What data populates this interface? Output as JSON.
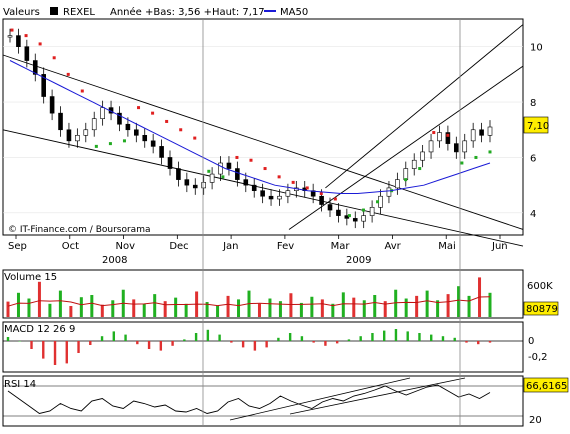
{
  "header": {
    "valeurs_label": "Valeurs",
    "symbol": "REXEL",
    "range_text": "Année +Bas: 3,56 +Haut: 7,17",
    "ma_label": "MA50"
  },
  "watermark": "© IT-Finance.com / Boursorama",
  "colors": {
    "price": "#000000",
    "ma50": "#1a1ad6",
    "sar_red": "#e02020",
    "sar_green": "#22aa22",
    "volume_up": "#20b020",
    "volume_down": "#e03030",
    "volume_avg": "#c01010",
    "macd_pos": "#20b020",
    "macd_neg": "#e03030",
    "badge_bg": "#ffee00",
    "trend": "#000000"
  },
  "chart_data": [
    {
      "type": "candlestick",
      "name": "price",
      "x_axis": {
        "months": [
          "Sep",
          "Oct",
          "Nov",
          "Dec",
          "Jan",
          "Fev",
          "Mar",
          "Avr",
          "Mai",
          "Jun"
        ],
        "years": [
          "2008",
          "2009"
        ]
      },
      "y_axis": {
        "ticks": [
          4,
          6,
          8,
          10
        ],
        "range": [
          3.2,
          11.0
        ]
      },
      "last_value_label": "7,10",
      "close_series": [
        10.4,
        10.0,
        9.5,
        9.0,
        8.2,
        7.6,
        7.0,
        6.6,
        6.8,
        7.0,
        7.4,
        7.8,
        7.6,
        7.2,
        7.0,
        6.8,
        6.6,
        6.4,
        6.0,
        5.6,
        5.2,
        5.0,
        4.9,
        5.1,
        5.4,
        5.8,
        5.6,
        5.2,
        5.0,
        4.8,
        4.6,
        4.5,
        4.6,
        4.8,
        4.9,
        4.8,
        4.6,
        4.3,
        4.1,
        3.9,
        3.8,
        3.7,
        3.9,
        4.2,
        4.6,
        4.9,
        5.2,
        5.6,
        5.9,
        6.2,
        6.6,
        6.9,
        6.5,
        6.2,
        6.6,
        7.0,
        6.8,
        7.1
      ],
      "ma50_series": [
        9.5,
        9.2,
        8.9,
        8.6,
        8.3,
        8.0,
        7.7,
        7.4,
        7.1,
        6.8,
        6.5,
        6.2,
        5.9,
        5.6,
        5.4,
        5.2,
        5.0,
        4.9,
        4.8,
        4.75,
        4.7,
        4.7,
        4.75,
        4.8,
        4.9,
        5.0,
        5.2,
        5.4,
        5.6,
        5.8
      ],
      "sar_series": [
        {
          "v": 10.6,
          "c": "red"
        },
        {
          "v": 10.4,
          "c": "red"
        },
        {
          "v": 10.1,
          "c": "red"
        },
        {
          "v": 9.6,
          "c": "red"
        },
        {
          "v": 9.0,
          "c": "red"
        },
        {
          "v": 8.4,
          "c": "red"
        },
        {
          "v": 6.4,
          "c": "green"
        },
        {
          "v": 6.5,
          "c": "green"
        },
        {
          "v": 6.6,
          "c": "green"
        },
        {
          "v": 7.8,
          "c": "red"
        },
        {
          "v": 7.6,
          "c": "red"
        },
        {
          "v": 7.3,
          "c": "red"
        },
        {
          "v": 7.0,
          "c": "red"
        },
        {
          "v": 6.7,
          "c": "red"
        },
        {
          "v": 5.5,
          "c": "green"
        },
        {
          "v": 5.3,
          "c": "green"
        },
        {
          "v": 6.0,
          "c": "red"
        },
        {
          "v": 5.9,
          "c": "red"
        },
        {
          "v": 5.6,
          "c": "red"
        },
        {
          "v": 5.3,
          "c": "red"
        },
        {
          "v": 5.1,
          "c": "red"
        },
        {
          "v": 4.9,
          "c": "red"
        },
        {
          "v": 4.7,
          "c": "red"
        },
        {
          "v": 4.5,
          "c": "red"
        },
        {
          "v": 3.9,
          "c": "green"
        },
        {
          "v": 4.1,
          "c": "green"
        },
        {
          "v": 4.4,
          "c": "green"
        },
        {
          "v": 4.8,
          "c": "green"
        },
        {
          "v": 5.2,
          "c": "green"
        },
        {
          "v": 5.6,
          "c": "green"
        },
        {
          "v": 6.9,
          "c": "red"
        },
        {
          "v": 6.8,
          "c": "red"
        },
        {
          "v": 5.8,
          "c": "green"
        },
        {
          "v": 6.0,
          "c": "green"
        },
        {
          "v": 6.2,
          "c": "green"
        }
      ],
      "trendlines": [
        {
          "from": [
            0,
            9.7
          ],
          "to": [
            1,
            3.4
          ],
          "note": "upper descending channel"
        },
        {
          "from": [
            0,
            7.0
          ],
          "to": [
            1,
            2.8
          ],
          "note": "lower descending channel"
        },
        {
          "from": [
            0.55,
            3.4
          ],
          "to": [
            1,
            9.3
          ],
          "note": "lower ascending channel"
        },
        {
          "from": [
            0.62,
            4.9
          ],
          "to": [
            1,
            10.8
          ],
          "note": "upper ascending channel"
        }
      ]
    },
    {
      "type": "bar",
      "name": "Volume 15",
      "title": "Volume 15",
      "ticks": [
        "600K"
      ],
      "last_value_label": "80879",
      "values": [
        0.35,
        0.55,
        0.42,
        0.8,
        0.3,
        0.6,
        0.25,
        0.45,
        0.5,
        0.28,
        0.38,
        0.62,
        0.4,
        0.3,
        0.52,
        0.36,
        0.44,
        0.3,
        0.58,
        0.34,
        0.26,
        0.48,
        0.4,
        0.6,
        0.3,
        0.42,
        0.36,
        0.54,
        0.32,
        0.46,
        0.4,
        0.3,
        0.56,
        0.44,
        0.38,
        0.5,
        0.36,
        0.62,
        0.42,
        0.48,
        0.6,
        0.38,
        0.52,
        0.7,
        0.48,
        0.9,
        0.55
      ]
    },
    {
      "type": "bar",
      "name": "MACD 12 26 9",
      "title": "MACD 12 26 9",
      "ticks": [
        "0",
        "-0,2"
      ],
      "values": [
        0.05,
        0.0,
        -0.1,
        -0.22,
        -0.3,
        -0.28,
        -0.15,
        -0.05,
        0.06,
        0.12,
        0.08,
        -0.04,
        -0.1,
        -0.12,
        -0.06,
        0.02,
        0.1,
        0.14,
        0.08,
        -0.02,
        -0.08,
        -0.12,
        -0.08,
        0.04,
        0.1,
        0.06,
        -0.02,
        -0.06,
        -0.03,
        0.02,
        0.06,
        0.1,
        0.13,
        0.15,
        0.12,
        0.1,
        0.08,
        0.06,
        0.04,
        -0.02,
        -0.04,
        -0.02
      ]
    },
    {
      "type": "line",
      "name": "RSI 14",
      "title": "RSI 14",
      "ticks": [
        "20"
      ],
      "last_value_label": "66,6165",
      "values": [
        70,
        55,
        40,
        25,
        30,
        45,
        35,
        30,
        50,
        55,
        40,
        35,
        50,
        45,
        38,
        42,
        30,
        28,
        35,
        25,
        30,
        48,
        55,
        40,
        35,
        45,
        60,
        50,
        42,
        35,
        48,
        55,
        50,
        60,
        65,
        72,
        80,
        70,
        62,
        70,
        78,
        82,
        70,
        58,
        64,
        55,
        67
      ]
    }
  ]
}
